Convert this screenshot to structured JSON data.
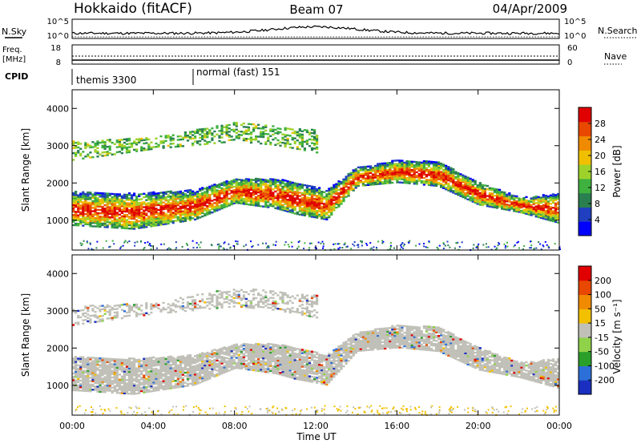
{
  "header": {
    "station": "Hokkaido (fitACF)",
    "beam": "Beam 07",
    "date": "04/Apr/2009"
  },
  "nsky_panel": {
    "left_label": "N.Sky",
    "right_label": "N.Search",
    "left_ticks": [
      "10^5",
      "10^0"
    ],
    "right_ticks": [
      "10^5",
      "10^0"
    ]
  },
  "freq_panel": {
    "left_label_line1": "Freq.",
    "left_label_line2": "[MHz]",
    "right_label": "Nave",
    "left_ticks": [
      "18",
      "8"
    ],
    "right_ticks": [
      "60",
      "0"
    ]
  },
  "cpid_panel": {
    "label": "CPID",
    "segments": [
      {
        "text": "themis 3300",
        "start_hour": 0
      },
      {
        "text": "normal (fast) 151",
        "start_hour": 6
      }
    ]
  },
  "x_axis": {
    "label": "Time UT",
    "ticks": [
      "00:00",
      "04:00",
      "08:00",
      "12:00",
      "16:00",
      "20:00",
      "00:00"
    ]
  },
  "colors": {
    "power_scale": [
      "#0000ff",
      "#2040c0",
      "#2a7f50",
      "#3fb13f",
      "#9ed22a",
      "#f0c000",
      "#f08a00",
      "#e84800",
      "#e00000"
    ],
    "velocity_scale": [
      "#1a2fbf",
      "#2d6fd8",
      "#2aa02a",
      "#8fd24a",
      "#c0c0b8",
      "#f2c000",
      "#f08a00",
      "#e84800",
      "#e00000"
    ],
    "ground_scatter": "#c0c0b8"
  },
  "chart_data": [
    {
      "type": "heatmap",
      "title": "Power",
      "xlabel": "Time UT",
      "ylabel": "Slant Range [km]",
      "xlim_hours": [
        0,
        24
      ],
      "ylim": [
        200,
        4500
      ],
      "yticks": [
        "1000",
        "2000",
        "3000",
        "4000"
      ],
      "colorbar": {
        "label": "Power [dB]",
        "ticks": [
          "28",
          "24",
          "20",
          "16",
          "12",
          "8",
          "4"
        ],
        "range": [
          0,
          32
        ]
      },
      "bands": [
        {
          "x": [
            0,
            3,
            6,
            8,
            10,
            11,
            12.5,
            14,
            16,
            18,
            20,
            22,
            24
          ],
          "range_low": [
            850,
            750,
            1000,
            1450,
            1300,
            1150,
            1000,
            1900,
            2000,
            1900,
            1400,
            1200,
            900
          ],
          "range_high": [
            1750,
            1700,
            1800,
            2100,
            2100,
            2000,
            1800,
            2400,
            2600,
            2550,
            2000,
            1600,
            1700
          ],
          "power": 26
        },
        {
          "x": [
            0,
            2,
            4,
            6,
            8,
            10,
            12
          ],
          "range_low": [
            2600,
            2750,
            2900,
            3000,
            3100,
            3000,
            2800
          ],
          "range_high": [
            3100,
            3150,
            3200,
            3400,
            3600,
            3500,
            3400
          ],
          "power": 12
        }
      ]
    },
    {
      "type": "heatmap",
      "title": "Velocity",
      "xlabel": "Time UT",
      "ylabel": "Slant Range [km]",
      "xlim_hours": [
        0,
        24
      ],
      "ylim": [
        200,
        4500
      ],
      "yticks": [
        "1000",
        "2000",
        "3000",
        "4000"
      ],
      "colorbar": {
        "label": "Velocity [m s⁻¹]",
        "ticks": [
          "200",
          "100",
          "50",
          "15",
          "-15",
          "-50",
          "-100",
          "-200"
        ],
        "range": [
          -250,
          250
        ]
      },
      "bands": [
        {
          "x": [
            0,
            3,
            6,
            8,
            10,
            11,
            12.5,
            14,
            16,
            18,
            20,
            22,
            24
          ],
          "range_low": [
            850,
            750,
            1000,
            1450,
            1300,
            1150,
            1000,
            1900,
            2000,
            1900,
            1400,
            1200,
            900
          ],
          "range_high": [
            1750,
            1700,
            1800,
            2100,
            2100,
            2000,
            1800,
            2400,
            2600,
            2550,
            2000,
            1600,
            1700
          ],
          "velocity": 0
        },
        {
          "x": [
            0,
            2,
            4,
            6,
            8,
            10,
            12
          ],
          "range_low": [
            2600,
            2750,
            2900,
            3000,
            3100,
            3000,
            2800
          ],
          "range_high": [
            3100,
            3150,
            3200,
            3400,
            3600,
            3500,
            3400
          ],
          "velocity": -40
        }
      ]
    }
  ]
}
